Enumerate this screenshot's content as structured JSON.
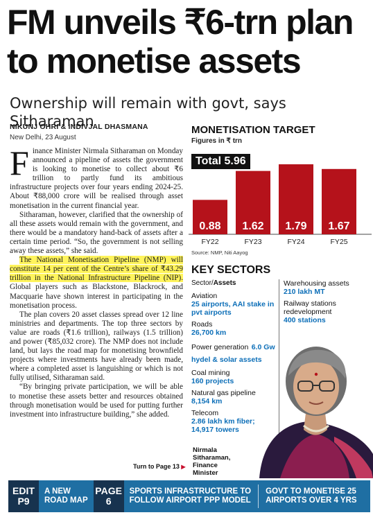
{
  "headline": {
    "line1": "FM unveils ₹6-trn plan",
    "line2": "to monetise assets"
  },
  "subhead": "Ownership will remain with govt, says Sitharaman",
  "byline": "NIKUNJ OHRI & INDIVJAL DHASMANA",
  "dateline": "New Delhi, 23 August",
  "article": {
    "dropcap": "F",
    "p1": "inance Minister Nirmala Sitharaman on Monday announced a pipeline of assets the government is looking to monetise to collect about ₹6 trillion to partly fund its ambitious infrastructure projects over four years ending 2024-25. About ₹88,000 crore will be realised through asset monetisation in the current financial year.",
    "p2": "Sitharaman, however, clarified that the ownership of all these assets would remain with the government, and there would be a mandatory hand-back of assets after a certain time period. “So, the government is not selling away these assets,” she said.",
    "p3_highlight": "The National Monetisation Pipeline (NMP) will constitute 14 per cent of the Centre’s share of ₹43.29 trillion in the National Infrastructure Pipeline (NIP).",
    "p3_rest": " Global players such as Blackstone, Blackrock, and Macquarie have shown interest in participating in the monetisation process.",
    "p4": "The plan covers 20 asset classes spread over 12 line ministries and departments. The top three sectors by value are roads (₹1.6 trillion), railways (1.5 trillion) and power (₹85,032 crore). The NMP does not include land, but lays the road map for monetising brownfield projects where investments have already been made, where a completed asset is languishing or which is not fully utilised, Sitharaman said.",
    "p5": "“By bringing private participation, we will be able to monetise these assets better and resources obtained through monetisation would be used for putting further investment into infrastructure building,” she added.",
    "turn_to": "Turn to Page 13"
  },
  "chart_data": {
    "type": "bar",
    "title": "MONETISATION TARGET",
    "subtitle": "Figures in ₹ trn",
    "total_label": "Total",
    "total_value": "5.96",
    "categories": [
      "FY22",
      "FY23",
      "FY24",
      "FY25"
    ],
    "values": [
      0.88,
      1.62,
      1.79,
      1.67
    ],
    "value_labels": [
      "0.88",
      "1.62",
      "1.79",
      "1.67"
    ],
    "ylim": [
      0,
      1.95
    ],
    "bar_color": "#b5121b",
    "source": "Source: NMP, Niti Aayog"
  },
  "key_sectors": {
    "title": "KEY SECTORS",
    "head_sector": "Sector/",
    "head_assets": "Assets",
    "left": [
      {
        "label": "Aviation",
        "value": "25 airports, AAI stake in pvt airports"
      },
      {
        "label": "Roads",
        "value": "26,700 km"
      },
      {
        "label": "Power generation",
        "value": "6.0 Gw hydel & solar assets"
      },
      {
        "label": "Coal mining",
        "value": "160 projects"
      },
      {
        "label": "Natural gas pipeline",
        "value": "8,154 km"
      },
      {
        "label": "Telecom",
        "value": "2.86 lakh km fiber; 14,917 towers"
      }
    ],
    "right": [
      {
        "label": "Warehousing assets",
        "value": "210 lakh MT"
      },
      {
        "label": "Railway stations redevelopment",
        "value": "400 stations"
      }
    ],
    "accent": "#0d6fb8"
  },
  "caption": {
    "line1": "Nirmala",
    "line2": "Sitharaman,",
    "line3": "Finance",
    "line4": "Minister"
  },
  "footer": {
    "tag1_a": "EDIT",
    "tag1_b": "P9",
    "text1_a": "A NEW",
    "text1_b": "ROAD MAP",
    "tag2_a": "PAGE",
    "tag2_b": "6",
    "text2_a": "SPORTS INFRASTRUCTURE TO",
    "text2_b": "FOLLOW AIRPORT PPP MODEL",
    "text3_a": "GOVT TO MONETISE 25",
    "text3_b": "AIRPORTS OVER 4 YRS",
    "bg": "#1f6fa3"
  }
}
